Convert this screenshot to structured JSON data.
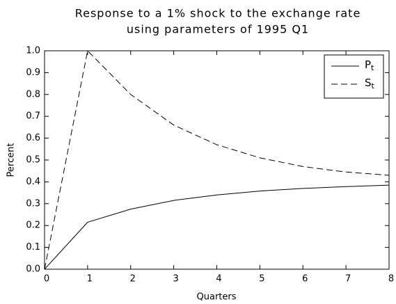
{
  "chart_data": {
    "type": "line",
    "title": [
      "Response to a 1% shock to the exchange rate",
      "using parameters of 1995 Q1"
    ],
    "x_label": "Quarters",
    "y_label": "Percent",
    "x": [
      0,
      1,
      2,
      3,
      4,
      5,
      6,
      7,
      8
    ],
    "series": [
      {
        "name": "P",
        "name_subscript": "t",
        "color": "#000000",
        "dash": "solid",
        "values": [
          0,
          0.215,
          0.275,
          0.315,
          0.34,
          0.358,
          0.37,
          0.378,
          0.385
        ]
      },
      {
        "name": "S",
        "name_subscript": "t",
        "color": "#000000",
        "dash": "dashed",
        "values": [
          0,
          1.0,
          0.8,
          0.66,
          0.57,
          0.51,
          0.47,
          0.445,
          0.43
        ]
      }
    ],
    "xlim": [
      0,
      8
    ],
    "xticks": [
      0,
      1,
      2,
      3,
      4,
      5,
      6,
      7,
      8
    ],
    "ylim": [
      0,
      1
    ],
    "yticks": [
      {
        "value": 0,
        "label": "0.0"
      },
      {
        "value": 0.1,
        "label": "0.1"
      },
      {
        "value": 0.2,
        "label": "0.2"
      },
      {
        "value": 0.3,
        "label": "0.3"
      },
      {
        "value": 0.4,
        "label": "0.4"
      },
      {
        "value": 0.5,
        "label": "0.5"
      },
      {
        "value": 0.6,
        "label": "0.6"
      },
      {
        "value": 0.7,
        "label": "0.7"
      },
      {
        "value": 0.8,
        "label": "0.8"
      },
      {
        "value": 0.9,
        "label": "0.9"
      },
      {
        "value": 1.0,
        "label": "1.0"
      }
    ],
    "grid": false,
    "legend": "upper right"
  }
}
